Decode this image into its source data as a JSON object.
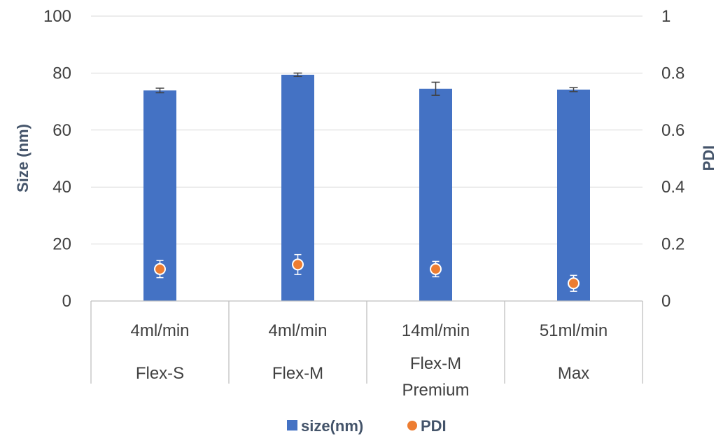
{
  "chart_data": {
    "type": "bar",
    "categories": [
      [
        "4ml/min",
        "Flex-S"
      ],
      [
        "4ml/min",
        "Flex-M"
      ],
      [
        "14ml/min",
        "Flex-M Premium"
      ],
      [
        "51ml/min",
        "Max"
      ]
    ],
    "series": [
      {
        "name": "size(nm)",
        "type": "bar",
        "axis": "left",
        "color": "#4472c4",
        "values": [
          73.9,
          79.4,
          74.5,
          74.2
        ],
        "error": [
          0.8,
          0.6,
          2.3,
          0.7
        ]
      },
      {
        "name": "PDI",
        "type": "scatter",
        "axis": "right",
        "color": "#ed7d31",
        "values": [
          0.112,
          0.128,
          0.112,
          0.062
        ],
        "error": [
          0.03,
          0.035,
          0.027,
          0.028
        ]
      }
    ],
    "ylabel": "Size (nm)",
    "y2label": "PDI",
    "ylim": [
      0,
      100
    ],
    "y2lim": [
      0,
      1
    ],
    "yticks": [
      "0",
      "20",
      "40",
      "60",
      "80",
      "100"
    ],
    "y2ticks": [
      "0",
      "0.2",
      "0.4",
      "0.6",
      "0.8",
      "1"
    ],
    "grid": true,
    "legend_position": "bottom"
  }
}
